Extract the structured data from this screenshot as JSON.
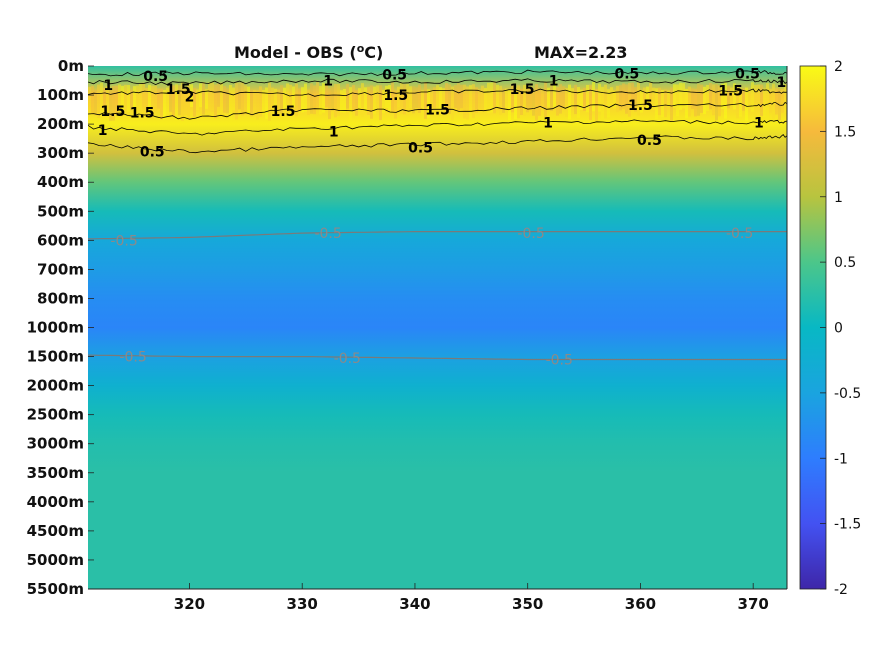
{
  "chart_data": {
    "type": "heatmap",
    "title": "Model - OBS (°C)",
    "title_prefix": "Model - OBS (",
    "title_super": "o",
    "title_suffix": "C)",
    "max_label": "MAX=2.23",
    "x_ticks": [
      320,
      330,
      340,
      350,
      360,
      370
    ],
    "x_range": [
      311,
      373
    ],
    "y_ticks": [
      "0m",
      "100m",
      "200m",
      "300m",
      "400m",
      "500m",
      "600m",
      "700m",
      "800m",
      "1000m",
      "1500m",
      "2000m",
      "2500m",
      "3000m",
      "3500m",
      "4000m",
      "4500m",
      "5000m",
      "5500m"
    ],
    "colorbar": {
      "ticks": [
        2,
        1.5,
        1,
        0.5,
        0,
        -0.5,
        -1,
        -1.5,
        -2
      ],
      "tick_labels": [
        "2",
        "1.5",
        "1",
        "0.5",
        "0",
        "-0.5",
        "-1",
        "-1.5",
        "-2"
      ],
      "range": [
        -2,
        2
      ],
      "colormap": "parula"
    },
    "depth_profile": [
      0.3,
      1.6,
      1.9,
      1.2,
      0.6,
      0.1,
      -0.4,
      -0.6,
      -0.8,
      -0.9,
      -0.55,
      -0.2,
      0.1,
      0.2,
      0.25,
      0.25,
      0.25,
      0.25,
      0.25
    ],
    "contour_labels": [
      {
        "text": "1",
        "x": 312.8,
        "depth_index": 0.65,
        "style": "black"
      },
      {
        "text": "0.5",
        "x": 317.0,
        "depth_index": 0.35,
        "style": "black"
      },
      {
        "text": "1.5",
        "x": 319.0,
        "depth_index": 0.8,
        "style": "black"
      },
      {
        "text": "2",
        "x": 320.0,
        "depth_index": 1.05,
        "style": "black"
      },
      {
        "text": "1.5",
        "x": 313.2,
        "depth_index": 1.55,
        "style": "black"
      },
      {
        "text": "1.5",
        "x": 315.8,
        "depth_index": 1.6,
        "style": "black"
      },
      {
        "text": "1",
        "x": 312.3,
        "depth_index": 2.2,
        "style": "black"
      },
      {
        "text": "0.5",
        "x": 316.7,
        "depth_index": 2.95,
        "style": "black"
      },
      {
        "text": "1",
        "x": 332.3,
        "depth_index": 0.5,
        "style": "black"
      },
      {
        "text": "0.5",
        "x": 338.2,
        "depth_index": 0.3,
        "style": "black"
      },
      {
        "text": "1.5",
        "x": 338.3,
        "depth_index": 1.0,
        "style": "black"
      },
      {
        "text": "1.5",
        "x": 328.3,
        "depth_index": 1.55,
        "style": "black"
      },
      {
        "text": "1",
        "x": 332.8,
        "depth_index": 2.25,
        "style": "black"
      },
      {
        "text": "1.5",
        "x": 342.0,
        "depth_index": 1.5,
        "style": "black"
      },
      {
        "text": "0.5",
        "x": 340.5,
        "depth_index": 2.8,
        "style": "black"
      },
      {
        "text": "1.5",
        "x": 349.5,
        "depth_index": 0.8,
        "style": "black"
      },
      {
        "text": "1",
        "x": 352.3,
        "depth_index": 0.5,
        "style": "black"
      },
      {
        "text": "1",
        "x": 351.8,
        "depth_index": 1.95,
        "style": "black"
      },
      {
        "text": "0.5",
        "x": 358.8,
        "depth_index": 0.25,
        "style": "black"
      },
      {
        "text": "1.5",
        "x": 360.0,
        "depth_index": 1.35,
        "style": "black"
      },
      {
        "text": "0.5",
        "x": 360.8,
        "depth_index": 2.55,
        "style": "black"
      },
      {
        "text": "0.5",
        "x": 369.5,
        "depth_index": 0.25,
        "style": "black"
      },
      {
        "text": "1.5",
        "x": 368.0,
        "depth_index": 0.85,
        "style": "black"
      },
      {
        "text": "1",
        "x": 372.5,
        "depth_index": 0.55,
        "style": "black"
      },
      {
        "text": "1",
        "x": 370.5,
        "depth_index": 1.95,
        "style": "black"
      },
      {
        "text": "-0.5",
        "x": 314.2,
        "depth_index": 6.0,
        "style": "gray"
      },
      {
        "text": "-0.5",
        "x": 332.3,
        "depth_index": 5.75,
        "style": "gray"
      },
      {
        "text": "-0.5",
        "x": 350.3,
        "depth_index": 5.75,
        "style": "gray"
      },
      {
        "text": "-0.5",
        "x": 368.8,
        "depth_index": 5.75,
        "style": "gray"
      },
      {
        "text": "-0.5",
        "x": 315.0,
        "depth_index": 10.0,
        "style": "gray"
      },
      {
        "text": "-0.5",
        "x": 334.0,
        "depth_index": 10.05,
        "style": "gray"
      },
      {
        "text": "-0.5",
        "x": 352.8,
        "depth_index": 10.1,
        "style": "gray"
      }
    ],
    "contour_lines": [
      {
        "level": 0.5,
        "style": "black",
        "depth_index": [
          0.3,
          0.25,
          0.3,
          0.25,
          0.2,
          0.25,
          0.2,
          0.25
        ]
      },
      {
        "level": 1,
        "style": "black",
        "depth_index": [
          0.55,
          0.6,
          0.5,
          0.55,
          0.5,
          0.55,
          0.5,
          0.55
        ]
      },
      {
        "level": 1.5,
        "style": "black",
        "depth_index": [
          0.95,
          0.9,
          1.0,
          0.9,
          0.85,
          0.9,
          0.85,
          0.9
        ]
      },
      {
        "level": 1.5,
        "style": "black",
        "depth_index": [
          1.6,
          1.8,
          1.5,
          1.55,
          1.45,
          1.35,
          1.35,
          1.3
        ]
      },
      {
        "level": 1,
        "style": "black",
        "depth_index": [
          2.1,
          2.35,
          2.15,
          2.05,
          1.95,
          1.9,
          1.95,
          1.9
        ]
      },
      {
        "level": 0.5,
        "style": "black",
        "depth_index": [
          2.7,
          2.95,
          2.8,
          2.7,
          2.6,
          2.45,
          2.5,
          2.4
        ]
      },
      {
        "level": -0.5,
        "style": "gray",
        "depth_index": [
          5.95,
          5.9,
          5.75,
          5.7,
          5.7,
          5.7,
          5.7,
          5.7
        ]
      },
      {
        "level": -0.5,
        "style": "gray",
        "depth_index": [
          9.95,
          10.0,
          10.0,
          10.05,
          10.1,
          10.1,
          10.1,
          10.1
        ]
      }
    ],
    "contour_x": [
      311,
      320,
      330,
      340,
      350,
      360,
      370,
      373
    ]
  }
}
